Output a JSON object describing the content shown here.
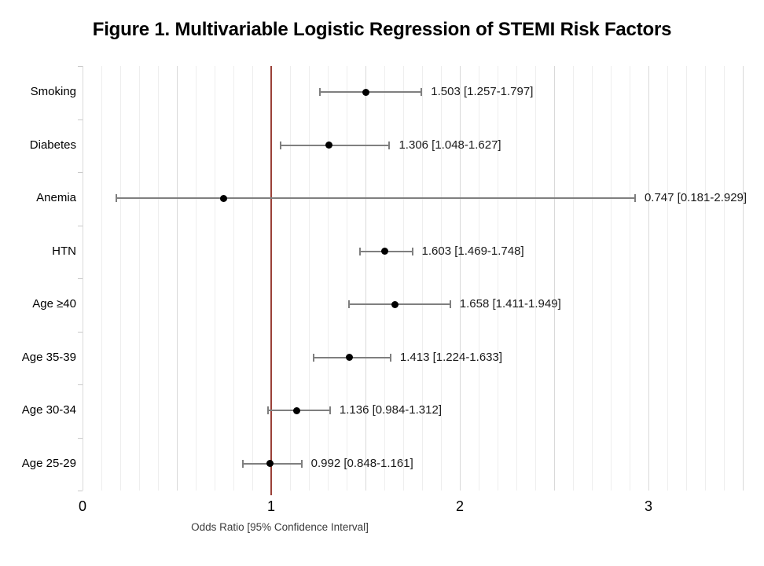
{
  "title": "Figure 1. Multivariable Logistic Regression of STEMI Risk Factors",
  "chart_data": {
    "type": "scatter",
    "subtype": "forest-plot",
    "title": "Figure 1. Multivariable Logistic Regression of STEMI Risk Factors",
    "xlabel": "Odds Ratio [95% Confidence Interval]",
    "xlim": [
      0,
      3.52
    ],
    "x_ticks": [
      0,
      1,
      2,
      3
    ],
    "minor_grid_step": 0.1,
    "major_grid_step": 0.5,
    "grid": true,
    "reference_line_x": 1,
    "rows": [
      {
        "label": "Smoking",
        "or": 1.503,
        "ci_low": 1.257,
        "ci_high": 1.797,
        "annotation": "1.503 [1.257-1.797]"
      },
      {
        "label": "Diabetes",
        "or": 1.306,
        "ci_low": 1.048,
        "ci_high": 1.627,
        "annotation": "1.306 [1.048-1.627]"
      },
      {
        "label": "Anemia",
        "or": 0.747,
        "ci_low": 0.181,
        "ci_high": 2.929,
        "annotation": "0.747 [0.181-2.929]"
      },
      {
        "label": "HTN",
        "or": 1.603,
        "ci_low": 1.469,
        "ci_high": 1.748,
        "annotation": "1.603 [1.469-1.748]"
      },
      {
        "label": "Age ≥40",
        "or": 1.658,
        "ci_low": 1.411,
        "ci_high": 1.949,
        "annotation": "1.658 [1.411-1.949]"
      },
      {
        "label": "Age 35-39",
        "or": 1.413,
        "ci_low": 1.224,
        "ci_high": 1.633,
        "annotation": "1.413 [1.224-1.633]"
      },
      {
        "label": "Age 30-34",
        "or": 1.136,
        "ci_low": 0.984,
        "ci_high": 1.312,
        "annotation": "1.136 [0.984-1.312]"
      },
      {
        "label": "Age 25-29",
        "or": 0.992,
        "ci_low": 0.848,
        "ci_high": 1.161,
        "annotation": "0.992 [0.848-1.161]"
      }
    ]
  },
  "colors": {
    "reference_line": "#9a4038",
    "error_bar": "#7f7f7f",
    "marker": "#000000",
    "minor_gridline": "#eeeeee",
    "major_gridline": "#d9d9d9"
  }
}
